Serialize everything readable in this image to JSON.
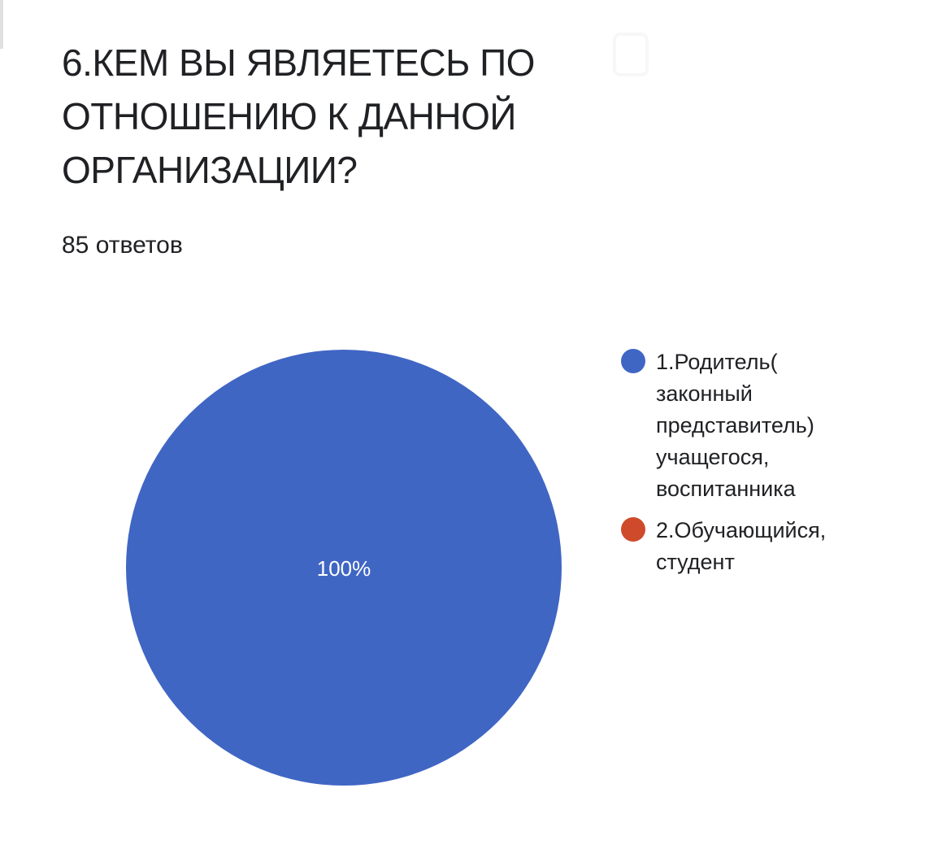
{
  "question": {
    "title": "6.КЕМ ВЫ ЯВЛЯЕТЕСЬ ПО ОТНОШЕНИЮ К ДАННОЙ ОРГАНИЗАЦИИ?",
    "response_count": "85 ответов"
  },
  "icons": {
    "copy": "copy-icon"
  },
  "colors": {
    "series_1": "#4066c4",
    "series_2": "#cf4a2b",
    "slice_label": "#ffffff"
  },
  "chart_data": {
    "type": "pie",
    "categories": [
      "1.Родитель( законный представитель) учащегося, воспитанника",
      "2.Обучающийся, студент"
    ],
    "values": [
      100,
      0
    ],
    "value_labels": [
      "100%",
      ""
    ],
    "legend_position": "right"
  }
}
